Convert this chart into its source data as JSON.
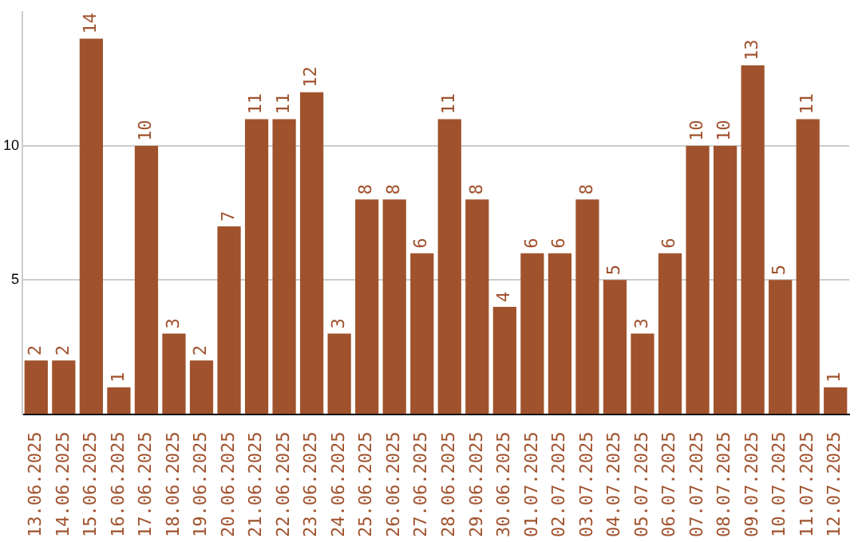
{
  "chart_data": {
    "type": "bar",
    "categories": [
      "13.06.2025",
      "14.06.2025",
      "15.06.2025",
      "16.06.2025",
      "17.06.2025",
      "18.06.2025",
      "19.06.2025",
      "20.06.2025",
      "21.06.2025",
      "22.06.2025",
      "23.06.2025",
      "24.06.2025",
      "25.06.2025",
      "26.06.2025",
      "27.06.2025",
      "28.06.2025",
      "29.06.2025",
      "30.06.2025",
      "01.07.2025",
      "02.07.2025",
      "03.07.2025",
      "04.07.2025",
      "05.07.2025",
      "06.07.2025",
      "07.07.2025",
      "08.07.2025",
      "09.07.2025",
      "10.07.2025",
      "11.07.2025",
      "12.07.2025"
    ],
    "values": [
      2,
      2,
      14,
      1,
      10,
      3,
      2,
      7,
      11,
      11,
      12,
      3,
      8,
      8,
      6,
      11,
      8,
      4,
      6,
      6,
      8,
      5,
      3,
      6,
      10,
      10,
      13,
      5,
      11,
      1
    ],
    "color": "#a0522d",
    "ylim": [
      0,
      15
    ],
    "yticks": [
      5,
      10
    ],
    "grid": "y",
    "data_labels": true,
    "legend": false
  }
}
